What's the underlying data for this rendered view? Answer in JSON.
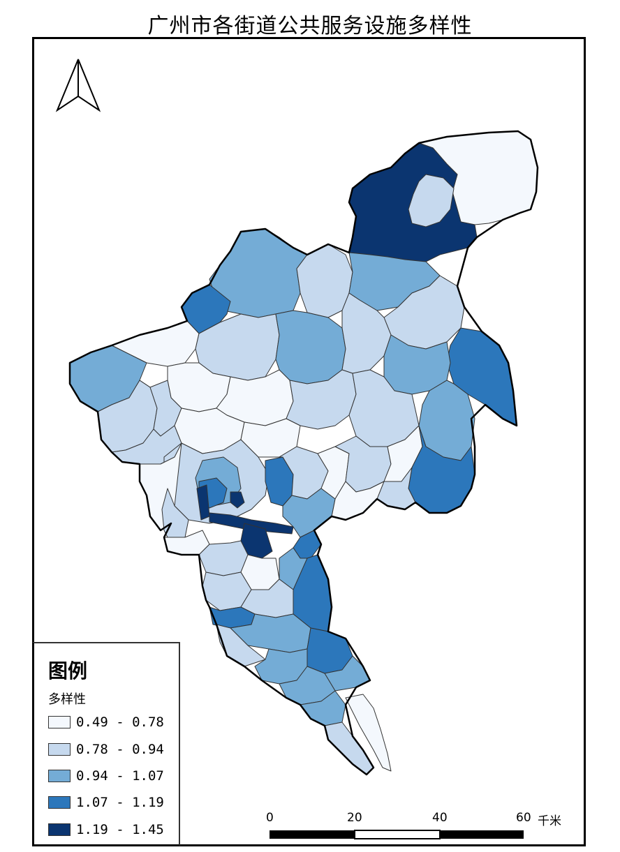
{
  "title": "广州市各街道公共服务设施多样性",
  "legend": {
    "heading": "图例",
    "field": "多样性",
    "classes": [
      {
        "label": "0.49 - 0.78",
        "color": "#f4f8fd"
      },
      {
        "label": "0.78 - 0.94",
        "color": "#c6d9ee"
      },
      {
        "label": "0.94 - 1.07",
        "color": "#74acd6"
      },
      {
        "label": "1.07 - 1.19",
        "color": "#2c77bb"
      },
      {
        "label": "1.19 - 1.45",
        "color": "#0b3570"
      }
    ]
  },
  "scale": {
    "ticks": [
      "0",
      "20",
      "40",
      "60"
    ],
    "unit": "千米"
  },
  "north_arrow": "north-arrow-icon"
}
